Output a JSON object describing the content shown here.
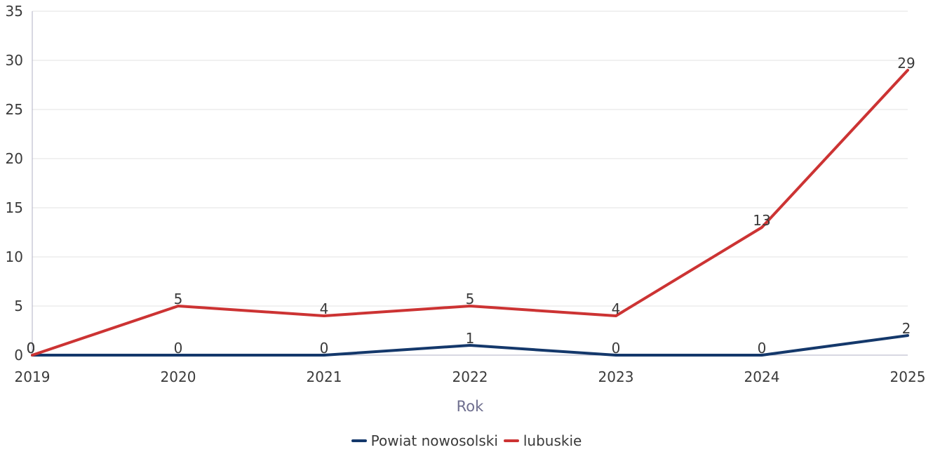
{
  "chart_data": {
    "type": "line",
    "title": "",
    "xlabel": "Rok",
    "ylabel": "",
    "x": [
      "2019",
      "2020",
      "2021",
      "2022",
      "2023",
      "2024",
      "2025"
    ],
    "ylim": [
      0,
      35
    ],
    "yticks": [
      "0",
      "5",
      "10",
      "15",
      "20",
      "25",
      "30",
      "35"
    ],
    "grid": true,
    "legend_position": "bottom",
    "series": [
      {
        "name": "Powiat nowosolski",
        "color": "#14386b",
        "values": [
          0,
          0,
          0,
          1,
          0,
          0,
          2
        ]
      },
      {
        "name": "lubuskie",
        "color": "#cc3333",
        "values": [
          0,
          5,
          4,
          5,
          4,
          13,
          29
        ]
      }
    ]
  }
}
